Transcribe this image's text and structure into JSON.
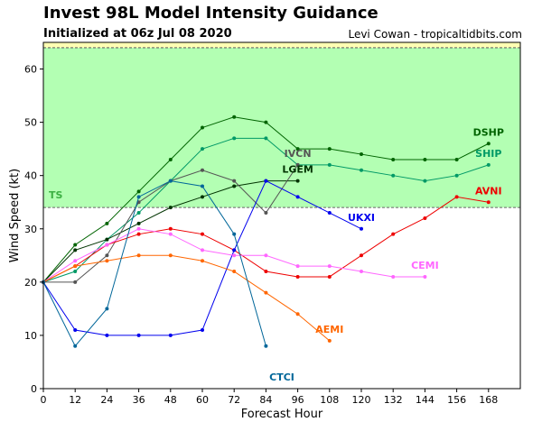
{
  "header": {
    "title": "Invest 98L Model Intensity Guidance",
    "subtitle": "Initialized at 06z Jul 08 2020",
    "credit": "Levi Cowan - tropicaltidbits.com"
  },
  "chart_data": {
    "type": "line",
    "xlabel": "Forecast Hour",
    "ylabel": "Wind Speed (kt)",
    "xlim": [
      0,
      180
    ],
    "ylim": [
      0,
      65
    ],
    "xticks": [
      0,
      12,
      24,
      36,
      48,
      60,
      72,
      84,
      96,
      108,
      120,
      132,
      144,
      156,
      168
    ],
    "yticks": [
      0,
      10,
      20,
      30,
      40,
      50,
      60
    ],
    "bands": [
      {
        "label": "TS",
        "from": 34,
        "to": 64,
        "color": "#b3ffb3",
        "label_color": "#3cb043"
      },
      {
        "label": "",
        "from": 64,
        "to": 65,
        "color": "#ffffb3",
        "label_color": "#999900"
      }
    ],
    "series": [
      {
        "name": "DSHP",
        "color": "#006400",
        "label_pos": [
          168,
          47.5
        ],
        "x": [
          0,
          12,
          24,
          36,
          48,
          60,
          72,
          84,
          96,
          108,
          120,
          132,
          144,
          156,
          168
        ],
        "y": [
          20,
          27,
          31,
          37,
          43,
          49,
          51,
          50,
          45,
          45,
          44,
          43,
          43,
          43,
          46
        ]
      },
      {
        "name": "SHIP",
        "color": "#009966",
        "label_pos": [
          168,
          43.5
        ],
        "x": [
          0,
          12,
          24,
          36,
          48,
          60,
          72,
          84,
          96,
          108,
          120,
          132,
          144,
          156,
          168
        ],
        "y": [
          20,
          22,
          28,
          33,
          39,
          45,
          47,
          47,
          42,
          42,
          41,
          40,
          39,
          40,
          42
        ]
      },
      {
        "name": "LGEM",
        "color": "#003300",
        "label_pos": [
          96,
          40.5
        ],
        "x": [
          0,
          12,
          24,
          36,
          48,
          60,
          72,
          84,
          96
        ],
        "y": [
          20,
          26,
          28,
          31,
          34,
          36,
          38,
          39,
          39
        ]
      },
      {
        "name": "IVCN",
        "color": "#555555",
        "label_pos": [
          96,
          43.5
        ],
        "x": [
          0,
          12,
          24,
          36,
          48,
          60,
          72,
          84,
          96
        ],
        "y": [
          20,
          20,
          25,
          35,
          39,
          41,
          39,
          33,
          42
        ]
      },
      {
        "name": "AVNI",
        "color": "#ee0000",
        "label_pos": [
          168,
          36.5
        ],
        "x": [
          0,
          12,
          24,
          36,
          48,
          60,
          72,
          84,
          96,
          108,
          120,
          132,
          144,
          156,
          168
        ],
        "y": [
          20,
          23,
          27,
          29,
          30,
          29,
          26,
          22,
          21,
          21,
          25,
          29,
          32,
          36,
          35
        ]
      },
      {
        "name": "UKXI",
        "color": "#0000ee",
        "label_pos": [
          120,
          31.5
        ],
        "x": [
          0,
          12,
          24,
          36,
          48,
          60,
          72,
          84,
          96,
          108,
          120
        ],
        "y": [
          20,
          11,
          10,
          10,
          10,
          11,
          26,
          39,
          36,
          33,
          30
        ]
      },
      {
        "name": "CEMI",
        "color": "#ff66ff",
        "label_pos": [
          144,
          22.5
        ],
        "x": [
          0,
          12,
          24,
          36,
          48,
          60,
          72,
          84,
          96,
          108,
          120,
          132,
          144
        ],
        "y": [
          20,
          24,
          27,
          30,
          29,
          26,
          25,
          25,
          23,
          23,
          22,
          21,
          21
        ]
      },
      {
        "name": "AEMI",
        "color": "#ff6600",
        "label_pos": [
          108,
          10.5
        ],
        "x": [
          0,
          12,
          24,
          36,
          48,
          60,
          72,
          84,
          96,
          108
        ],
        "y": [
          20,
          23,
          24,
          25,
          25,
          24,
          22,
          18,
          14,
          9
        ]
      },
      {
        "name": "CTCI",
        "color": "#006699",
        "label_pos": [
          90,
          1.5
        ],
        "x": [
          0,
          12,
          24,
          36,
          48,
          60,
          72,
          84
        ],
        "y": [
          20,
          8,
          15,
          36,
          39,
          38,
          29,
          8
        ]
      }
    ]
  }
}
